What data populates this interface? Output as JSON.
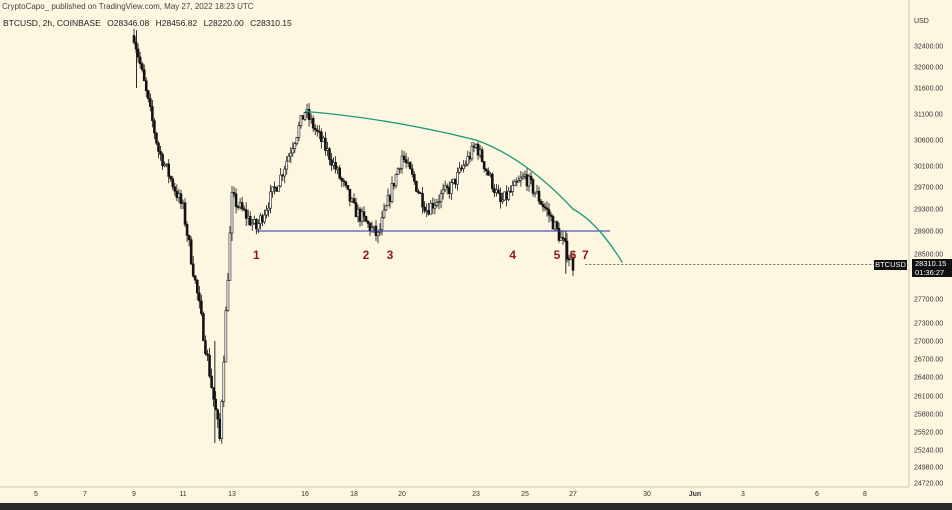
{
  "header": {
    "publisher": "CryptoCapo_ published on TradingView.com, May 27, 2022 18:23 UTC",
    "symbol": "BTCUSD, 2h, COINBASE",
    "open": "O28346.08",
    "high": "H28456.82",
    "low": "L28220.00",
    "close": "C28310.15"
  },
  "price_axis": {
    "currency": "USD",
    "labels": [
      "32400.00",
      "32000.00",
      "31600.00",
      "31100.00",
      "30600.00",
      "30100.00",
      "29700.00",
      "29300.00",
      "28900.00",
      "28500.00",
      "27700.00",
      "27300.00",
      "27000.00",
      "26700.00",
      "26400.00",
      "26100.00",
      "25800.00",
      "25520.00",
      "25240.00",
      "24980.00",
      "24720.00"
    ]
  },
  "time_axis": {
    "labels": [
      "5",
      "7",
      "9",
      "11",
      "13",
      "16",
      "18",
      "20",
      "23",
      "25",
      "27",
      "30",
      "Jun",
      "3",
      "6",
      "8"
    ]
  },
  "last_price": {
    "symbol": "BTCUSD",
    "price": "28310.15",
    "countdown": "01:36:27"
  },
  "colors": {
    "background": "#fdf6e0",
    "candle": "#131313",
    "arc": "#1a9a78",
    "support": "#2b2ba6",
    "touch_label": "#8b1a1a"
  },
  "chart_data": {
    "type": "candlestick",
    "title": "",
    "xlabel": "",
    "ylabel": "USD",
    "x_range": [
      "May 4",
      "Jun 9"
    ],
    "ylim": [
      24600,
      32700
    ],
    "grid": false,
    "approx_closes": [
      {
        "date": "2022-05-09",
        "price": 32600
      },
      {
        "date": "2022-05-10",
        "price": 30400
      },
      {
        "date": "2022-05-11",
        "price": 29300
      },
      {
        "date": "2022-05-12",
        "price": 26700
      },
      {
        "date": "2022-05-12T12:00",
        "price": 25400
      },
      {
        "date": "2022-05-13",
        "price": 29500
      },
      {
        "date": "2022-05-14",
        "price": 28950
      },
      {
        "date": "2022-05-15",
        "price": 29900
      },
      {
        "date": "2022-05-16",
        "price": 31150
      },
      {
        "date": "2022-05-17",
        "price": 30300
      },
      {
        "date": "2022-05-18",
        "price": 29300
      },
      {
        "date": "2022-05-19",
        "price": 28800
      },
      {
        "date": "2022-05-20",
        "price": 30300
      },
      {
        "date": "2022-05-21",
        "price": 29300
      },
      {
        "date": "2022-05-22",
        "price": 29700
      },
      {
        "date": "2022-05-23",
        "price": 30500
      },
      {
        "date": "2022-05-24",
        "price": 29400
      },
      {
        "date": "2022-05-25",
        "price": 29900
      },
      {
        "date": "2022-05-26",
        "price": 29200
      },
      {
        "date": "2022-05-27",
        "price": 28310
      }
    ],
    "support_level": 28900,
    "arc": [
      {
        "date": "2022-05-16",
        "price": 31150
      },
      {
        "date": "2022-05-23",
        "price": 30600
      },
      {
        "date": "2022-05-27",
        "price": 29300
      },
      {
        "date": "2022-05-29",
        "price": 28350
      }
    ],
    "touches": [
      {
        "label": "1",
        "date": "2022-05-14"
      },
      {
        "label": "2",
        "date": "2022-05-18T12:00"
      },
      {
        "label": "3",
        "date": "2022-05-19T12:00"
      },
      {
        "label": "4",
        "date": "2022-05-24T12:00"
      },
      {
        "label": "5",
        "date": "2022-05-26T08:00"
      },
      {
        "label": "6",
        "date": "2022-05-27"
      },
      {
        "label": "7",
        "date": "2022-05-27T12:00"
      }
    ]
  }
}
